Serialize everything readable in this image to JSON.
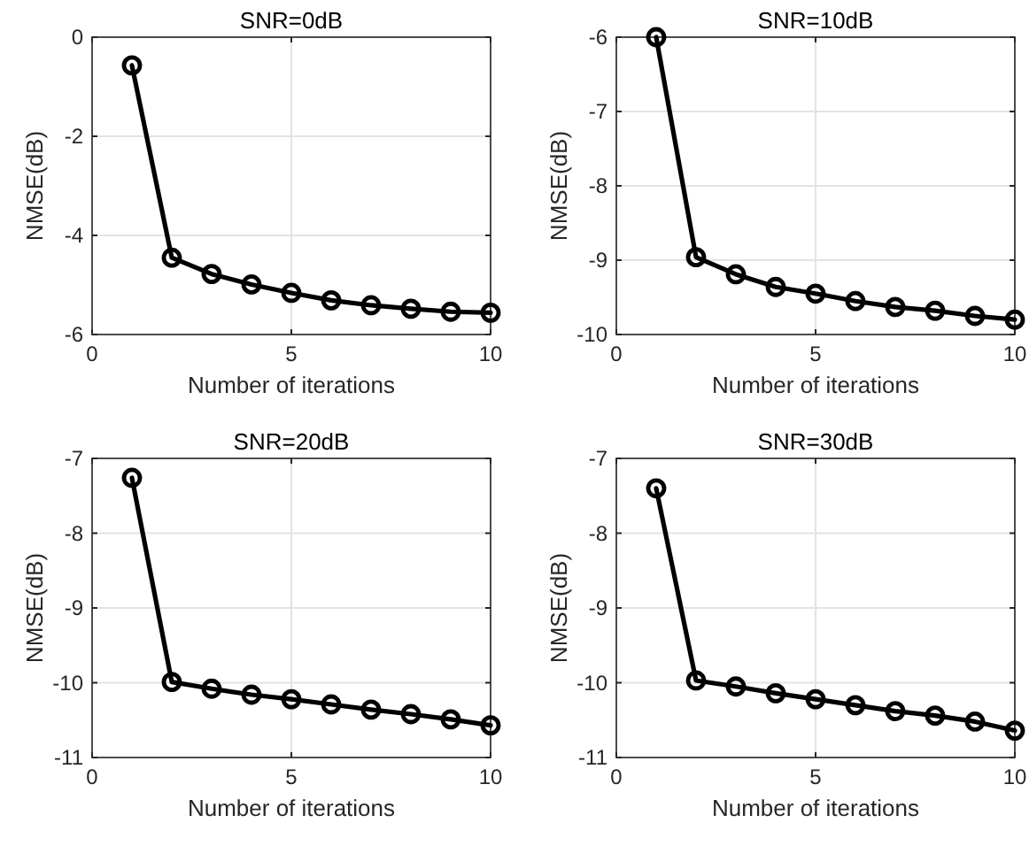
{
  "chart_data": [
    {
      "type": "line",
      "title": "SNR=0dB",
      "xlabel": "Number of iterations",
      "ylabel": "NMSE(dB)",
      "x": [
        1,
        2,
        3,
        4,
        5,
        6,
        7,
        8,
        9,
        10
      ],
      "series": [
        {
          "color": "#000000",
          "values": [
            -0.57,
            -4.45,
            -4.78,
            -4.99,
            -5.16,
            -5.31,
            -5.41,
            -5.48,
            -5.54,
            -5.56
          ]
        }
      ],
      "xlim": [
        0,
        10
      ],
      "xticks": [
        0,
        5,
        10
      ],
      "ylim": [
        -6,
        0
      ],
      "yticks": [
        -6,
        -4,
        -2,
        0
      ],
      "grid": true,
      "marker": "circle",
      "line_style": "solid"
    },
    {
      "type": "line",
      "title": "SNR=10dB",
      "xlabel": "Number of iterations",
      "ylabel": "NMSE(dB)",
      "x": [
        1,
        2,
        3,
        4,
        5,
        6,
        7,
        8,
        9,
        10
      ],
      "series": [
        {
          "color": "#000000",
          "values": [
            -6.0,
            -8.96,
            -9.19,
            -9.36,
            -9.45,
            -9.55,
            -9.63,
            -9.68,
            -9.75,
            -9.8
          ]
        }
      ],
      "xlim": [
        0,
        10
      ],
      "xticks": [
        0,
        5,
        10
      ],
      "ylim": [
        -10,
        -6
      ],
      "yticks": [
        -10,
        -9,
        -8,
        -7,
        -6
      ],
      "grid": true,
      "marker": "circle",
      "line_style": "solid"
    },
    {
      "type": "line",
      "title": "SNR=20dB",
      "xlabel": "Number of iterations",
      "ylabel": "NMSE(dB)",
      "x": [
        1,
        2,
        3,
        4,
        5,
        6,
        7,
        8,
        9,
        10
      ],
      "series": [
        {
          "color": "#000000",
          "values": [
            -7.26,
            -9.99,
            -10.08,
            -10.16,
            -10.22,
            -10.29,
            -10.36,
            -10.42,
            -10.49,
            -10.57
          ]
        }
      ],
      "xlim": [
        0,
        10
      ],
      "xticks": [
        0,
        5,
        10
      ],
      "ylim": [
        -11,
        -7
      ],
      "yticks": [
        -11,
        -10,
        -9,
        -8,
        -7
      ],
      "grid": true,
      "marker": "circle",
      "line_style": "solid"
    },
    {
      "type": "line",
      "title": "SNR=30dB",
      "xlabel": "Number of iterations",
      "ylabel": "NMSE(dB)",
      "x": [
        1,
        2,
        3,
        4,
        5,
        6,
        7,
        8,
        9,
        10
      ],
      "series": [
        {
          "color": "#000000",
          "values": [
            -7.4,
            -9.97,
            -10.05,
            -10.14,
            -10.22,
            -10.3,
            -10.38,
            -10.44,
            -10.52,
            -10.64
          ]
        }
      ],
      "xlim": [
        0,
        10
      ],
      "xticks": [
        0,
        5,
        10
      ],
      "ylim": [
        -11,
        -7
      ],
      "yticks": [
        -11,
        -10,
        -9,
        -8,
        -7
      ],
      "grid": true,
      "marker": "circle",
      "line_style": "solid"
    }
  ]
}
